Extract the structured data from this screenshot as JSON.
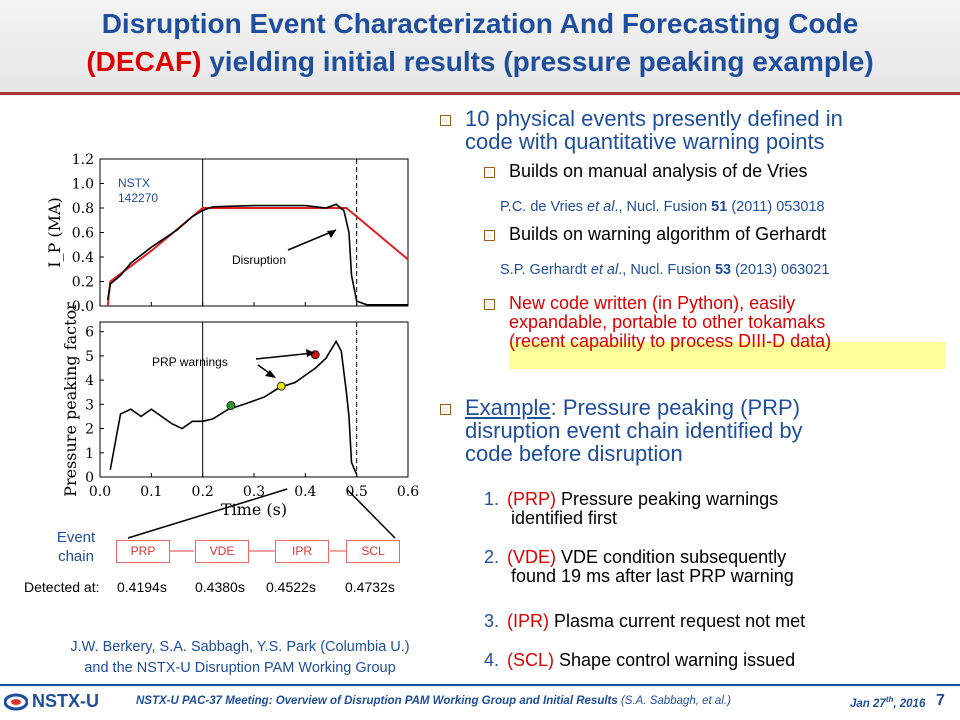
{
  "title": {
    "line1": "Disruption Event Characterization And Forecasting Code",
    "line2_red": "(DECAF)",
    "line2_rest": " yielding initial results (pressure peaking example)"
  },
  "bullets": {
    "b1_line1": "10 physical events presently defined in",
    "b1_line2": "code with quantitative warning points",
    "b1a": "Builds on manual analysis of de Vries",
    "ref1_a": "P.C. de Vries ",
    "ref1_b": "et al",
    "ref1_c": "., Nucl. Fusion ",
    "ref1_d": "51",
    "ref1_e": " (2011) 053018",
    "b1b": "Builds on warning algorithm of Gerhardt",
    "ref2_a": "S.P. Gerhardt ",
    "ref2_b": "et al",
    "ref2_c": "., Nucl. Fusion ",
    "ref2_d": "53",
    "ref2_e": " (2013) 063021",
    "b1c_line1": "New code written (in Python), easily",
    "b1c_line2": "expandable, portable to other tokamaks",
    "b1c_line3": "(recent capability to process DIII-D data)",
    "b2_example": "Example",
    "b2_line1_rest": ": Pressure peaking (PRP)",
    "b2_line2": "disruption event chain identified by",
    "b2_line3": "code before disruption"
  },
  "steps": [
    {
      "n": "1.",
      "key": "(PRP)",
      "text1": " Pressure peaking warnings",
      "text2": "identified first"
    },
    {
      "n": "2.",
      "key": "(VDE)",
      "text1": " VDE condition subsequently",
      "text2": "found 19 ms after last PRP warning"
    },
    {
      "n": "3.",
      "key": "(IPR)",
      "text1": " Plasma current request not met",
      "text2": ""
    },
    {
      "n": "4.",
      "key": "(SCL)",
      "text1": " Shape control warning issued",
      "text2": ""
    }
  ],
  "figure": {
    "shot_line1": "NSTX",
    "shot_line2": "142270",
    "disruption_label": "Disruption",
    "prp_label": "PRP warnings",
    "top_ylabel": "I_P (MA)",
    "bottom_ylabel": "Pressure peaking factor",
    "xlabel": "Time (s)",
    "top_yticks": [
      "1.2",
      "1.0",
      "0.8",
      "0.6",
      "0.4",
      "0.2",
      "0.0"
    ],
    "bottom_yticks": [
      "6",
      "5",
      "4",
      "3",
      "2",
      "1",
      "0"
    ],
    "xticks": [
      "0.0",
      "0.1",
      "0.2",
      "0.3",
      "0.4",
      "0.5",
      "0.6"
    ],
    "ip_measured": [
      [
        0.015,
        0.05
      ],
      [
        0.02,
        0.18
      ],
      [
        0.04,
        0.25
      ],
      [
        0.06,
        0.35
      ],
      [
        0.1,
        0.48
      ],
      [
        0.15,
        0.62
      ],
      [
        0.18,
        0.73
      ],
      [
        0.2,
        0.78
      ],
      [
        0.22,
        0.81
      ],
      [
        0.3,
        0.82
      ],
      [
        0.4,
        0.82
      ],
      [
        0.44,
        0.8
      ],
      [
        0.46,
        0.83
      ],
      [
        0.475,
        0.78
      ],
      [
        0.485,
        0.6
      ],
      [
        0.49,
        0.25
      ],
      [
        0.5,
        0.04
      ],
      [
        0.52,
        0.01
      ],
      [
        0.6,
        0.01
      ]
    ],
    "ip_request": [
      [
        0.015,
        0.0
      ],
      [
        0.02,
        0.2
      ],
      [
        0.1,
        0.45
      ],
      [
        0.2,
        0.8
      ],
      [
        0.48,
        0.8
      ],
      [
        0.6,
        0.38
      ]
    ],
    "prp_trace": [
      [
        0.02,
        0.3
      ],
      [
        0.04,
        2.6
      ],
      [
        0.06,
        2.8
      ],
      [
        0.08,
        2.5
      ],
      [
        0.1,
        2.8
      ],
      [
        0.12,
        2.5
      ],
      [
        0.14,
        2.2
      ],
      [
        0.16,
        2.0
      ],
      [
        0.18,
        2.3
      ],
      [
        0.2,
        2.3
      ],
      [
        0.22,
        2.4
      ],
      [
        0.25,
        2.8
      ],
      [
        0.28,
        3.0
      ],
      [
        0.32,
        3.3
      ],
      [
        0.35,
        3.7
      ],
      [
        0.38,
        3.9
      ],
      [
        0.4,
        4.2
      ],
      [
        0.42,
        4.5
      ],
      [
        0.44,
        4.9
      ],
      [
        0.46,
        5.6
      ],
      [
        0.47,
        5.2
      ],
      [
        0.48,
        3.5
      ],
      [
        0.485,
        2.5
      ],
      [
        0.49,
        0.6
      ],
      [
        0.5,
        0.1
      ]
    ],
    "warnings": [
      {
        "t": 0.255,
        "v": 2.95,
        "color": "#2a9a2a"
      },
      {
        "t": 0.353,
        "v": 3.75,
        "color": "#e9e21c"
      },
      {
        "t": 0.4194,
        "v": 5.05,
        "color": "#d01010"
      }
    ],
    "vlines": [
      0.2,
      0.5
    ]
  },
  "chain": {
    "label_line1": "Event",
    "label_line2": "chain",
    "boxes": [
      "PRP",
      "VDE",
      "IPR",
      "SCL"
    ],
    "detected_label": "Detected at:",
    "times": [
      "0.4194s",
      "0.4380s",
      "0.4522s",
      "0.4732s"
    ]
  },
  "credits": {
    "line1": "J.W. Berkery, S.A. Sabbagh, Y.S. Park (Columbia U.)",
    "line2": "and the NSTX-U Disruption PAM Working Group"
  },
  "footer": {
    "logo": "NSTX-U",
    "meeting": "NSTX-U PAC-37 Meeting: Overview of Disruption PAM Working Group and Initial Results",
    "author": " (S.A. Sabbagh, et al.)",
    "date_a": "Jan 27",
    "date_sup": "th",
    "date_b": ", 2016",
    "page": "7"
  },
  "colors": {
    "title_blue": "#1f4e9c",
    "accent_red": "#d00000",
    "highlight": "#ffff99"
  }
}
